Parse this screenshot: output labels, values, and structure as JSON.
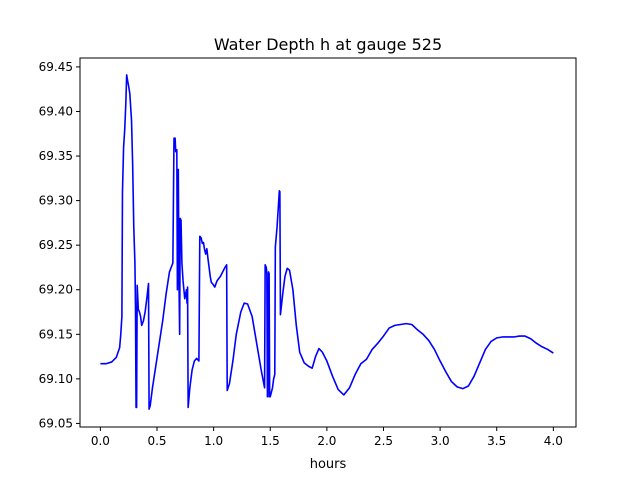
{
  "chart_data": {
    "type": "line",
    "title": "Water Depth h at gauge 525",
    "xlabel": "hours",
    "ylabel": "",
    "xlim": [
      -0.18,
      4.2
    ],
    "ylim": [
      69.046,
      69.46
    ],
    "xticks": [
      "0.0",
      "0.5",
      "1.0",
      "1.5",
      "2.0",
      "2.5",
      "3.0",
      "3.5",
      "4.0"
    ],
    "yticks": [
      "69.05",
      "69.10",
      "69.15",
      "69.20",
      "69.25",
      "69.30",
      "69.35",
      "69.40",
      "69.45"
    ],
    "grid": false,
    "series": [
      {
        "color": "#0000ff",
        "points": [
          [
            0.0,
            69.117
          ],
          [
            0.05,
            69.117
          ],
          [
            0.1,
            69.119
          ],
          [
            0.14,
            69.124
          ],
          [
            0.17,
            69.135
          ],
          [
            0.18,
            69.15
          ],
          [
            0.19,
            69.17
          ],
          [
            0.195,
            69.31
          ],
          [
            0.205,
            69.36
          ],
          [
            0.215,
            69.38
          ],
          [
            0.225,
            69.41
          ],
          [
            0.232,
            69.441
          ],
          [
            0.24,
            69.435
          ],
          [
            0.25,
            69.428
          ],
          [
            0.26,
            69.42
          ],
          [
            0.275,
            69.39
          ],
          [
            0.285,
            69.34
          ],
          [
            0.295,
            69.27
          ],
          [
            0.305,
            69.23
          ],
          [
            0.31,
            69.18
          ],
          [
            0.315,
            69.068
          ],
          [
            0.32,
            69.068
          ],
          [
            0.325,
            69.205
          ],
          [
            0.335,
            69.178
          ],
          [
            0.345,
            69.175
          ],
          [
            0.355,
            69.17
          ],
          [
            0.365,
            69.16
          ],
          [
            0.38,
            69.165
          ],
          [
            0.395,
            69.175
          ],
          [
            0.41,
            69.19
          ],
          [
            0.425,
            69.207
          ],
          [
            0.43,
            69.066
          ],
          [
            0.44,
            69.07
          ],
          [
            0.46,
            69.09
          ],
          [
            0.49,
            69.115
          ],
          [
            0.52,
            69.14
          ],
          [
            0.55,
            69.165
          ],
          [
            0.58,
            69.195
          ],
          [
            0.61,
            69.22
          ],
          [
            0.64,
            69.23
          ],
          [
            0.65,
            69.37
          ],
          [
            0.66,
            69.37
          ],
          [
            0.665,
            69.355
          ],
          [
            0.675,
            69.357
          ],
          [
            0.68,
            69.2
          ],
          [
            0.688,
            69.335
          ],
          [
            0.695,
            69.2
          ],
          [
            0.7,
            69.15
          ],
          [
            0.705,
            69.28
          ],
          [
            0.712,
            69.278
          ],
          [
            0.72,
            69.23
          ],
          [
            0.73,
            69.21
          ],
          [
            0.745,
            69.19
          ],
          [
            0.76,
            69.2
          ],
          [
            0.765,
            69.185
          ],
          [
            0.77,
            69.203
          ],
          [
            0.775,
            69.068
          ],
          [
            0.79,
            69.09
          ],
          [
            0.81,
            69.11
          ],
          [
            0.83,
            69.12
          ],
          [
            0.85,
            69.123
          ],
          [
            0.87,
            69.12
          ],
          [
            0.878,
            69.26
          ],
          [
            0.89,
            69.258
          ],
          [
            0.9,
            69.252
          ],
          [
            0.91,
            69.253
          ],
          [
            0.92,
            69.245
          ],
          [
            0.93,
            69.24
          ],
          [
            0.94,
            69.246
          ],
          [
            0.95,
            69.235
          ],
          [
            0.96,
            69.225
          ],
          [
            0.97,
            69.215
          ],
          [
            0.98,
            69.208
          ],
          [
            0.99,
            69.207
          ],
          [
            1.0,
            69.205
          ],
          [
            1.01,
            69.203
          ],
          [
            1.03,
            69.21
          ],
          [
            1.06,
            69.215
          ],
          [
            1.08,
            69.22
          ],
          [
            1.1,
            69.225
          ],
          [
            1.115,
            69.228
          ],
          [
            1.12,
            69.087
          ],
          [
            1.14,
            69.095
          ],
          [
            1.17,
            69.12
          ],
          [
            1.2,
            69.15
          ],
          [
            1.24,
            69.175
          ],
          [
            1.27,
            69.185
          ],
          [
            1.3,
            69.184
          ],
          [
            1.34,
            69.17
          ],
          [
            1.38,
            69.14
          ],
          [
            1.42,
            69.11
          ],
          [
            1.45,
            69.09
          ],
          [
            1.455,
            69.228
          ],
          [
            1.465,
            69.225
          ],
          [
            1.47,
            69.218
          ],
          [
            1.475,
            69.08
          ],
          [
            1.48,
            69.08
          ],
          [
            1.485,
            69.22
          ],
          [
            1.49,
            69.218
          ],
          [
            1.495,
            69.08
          ],
          [
            1.5,
            69.08
          ],
          [
            1.52,
            69.09
          ],
          [
            1.53,
            69.1
          ],
          [
            1.54,
            69.105
          ],
          [
            1.545,
            69.248
          ],
          [
            1.56,
            69.27
          ],
          [
            1.57,
            69.29
          ],
          [
            1.575,
            69.3
          ],
          [
            1.58,
            69.311
          ],
          [
            1.585,
            69.31
          ],
          [
            1.59,
            69.172
          ],
          [
            1.61,
            69.195
          ],
          [
            1.63,
            69.215
          ],
          [
            1.65,
            69.224
          ],
          [
            1.67,
            69.222
          ],
          [
            1.7,
            69.2
          ],
          [
            1.73,
            69.16
          ],
          [
            1.76,
            69.13
          ],
          [
            1.8,
            69.118
          ],
          [
            1.84,
            69.114
          ],
          [
            1.87,
            69.112
          ],
          [
            1.9,
            69.125
          ],
          [
            1.93,
            69.134
          ],
          [
            1.96,
            69.13
          ],
          [
            2.0,
            69.12
          ],
          [
            2.05,
            69.103
          ],
          [
            2.1,
            69.088
          ],
          [
            2.15,
            69.082
          ],
          [
            2.2,
            69.09
          ],
          [
            2.25,
            69.105
          ],
          [
            2.3,
            69.117
          ],
          [
            2.35,
            69.122
          ],
          [
            2.4,
            69.133
          ],
          [
            2.45,
            69.14
          ],
          [
            2.5,
            69.148
          ],
          [
            2.55,
            69.157
          ],
          [
            2.6,
            69.16
          ],
          [
            2.65,
            69.161
          ],
          [
            2.7,
            69.162
          ],
          [
            2.75,
            69.161
          ],
          [
            2.8,
            69.155
          ],
          [
            2.85,
            69.15
          ],
          [
            2.9,
            69.143
          ],
          [
            2.95,
            69.133
          ],
          [
            3.0,
            69.12
          ],
          [
            3.05,
            69.108
          ],
          [
            3.1,
            69.097
          ],
          [
            3.15,
            69.091
          ],
          [
            3.2,
            69.089
          ],
          [
            3.25,
            69.092
          ],
          [
            3.3,
            69.103
          ],
          [
            3.35,
            69.118
          ],
          [
            3.4,
            69.133
          ],
          [
            3.45,
            69.142
          ],
          [
            3.5,
            69.146
          ],
          [
            3.55,
            69.147
          ],
          [
            3.6,
            69.147
          ],
          [
            3.65,
            69.147
          ],
          [
            3.7,
            69.148
          ],
          [
            3.75,
            69.148
          ],
          [
            3.8,
            69.145
          ],
          [
            3.85,
            69.14
          ],
          [
            3.9,
            69.136
          ],
          [
            3.95,
            69.133
          ],
          [
            4.0,
            69.129
          ]
        ]
      }
    ]
  }
}
